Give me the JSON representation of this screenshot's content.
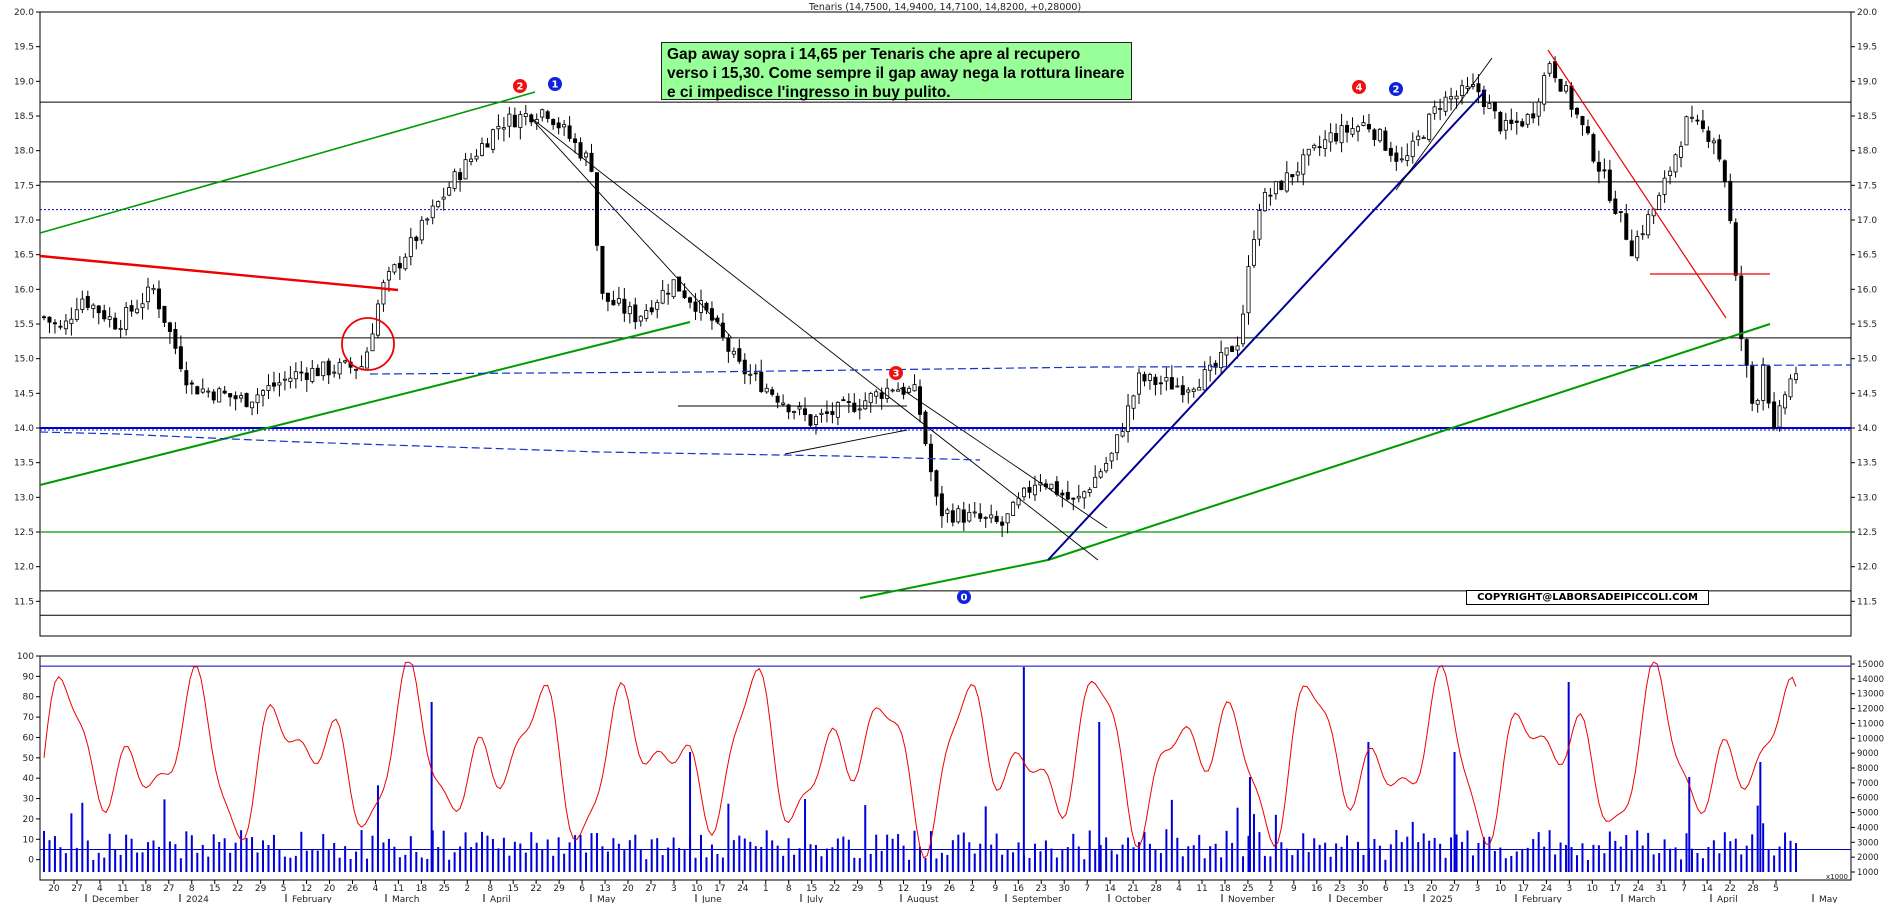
{
  "title": "Tenaris (14,7500, 14,9400, 14,7100, 14,8200, +0,28000)",
  "callout_lines": [
    "Gap away sopra i 14,65 per Tenaris che apre al recupero",
    "verso i 15,30. Come sempre il gap away nega la rottura lineare",
    "e ci impedisce l'ingresso in buy pulito."
  ],
  "copyright": "COPYRIGHT@LABORSADEIPICCOLI.COM",
  "colors": {
    "candle": "#000000",
    "support": "#0000cc",
    "trend_green": "#009900",
    "trend_red": "#ee0000",
    "osc": "#ee0000",
    "volume": "#0000dd"
  },
  "chart_data": [
    {
      "type": "candlestick",
      "title": "Tenaris (14,7500, 14,9400, 14,7100, 14,8200, +0,28000)",
      "ylim": [
        11.0,
        20.0
      ],
      "y_ticks": [
        "11.5",
        "12.0",
        "12.5",
        "13.0",
        "13.5",
        "14.0",
        "14.5",
        "15.0",
        "15.5",
        "16.0",
        "16.5",
        "17.0",
        "17.5",
        "18.0",
        "18.5",
        "19.0",
        "19.5",
        "20.0"
      ],
      "last": {
        "open": 14.75,
        "high": 14.94,
        "low": 14.71,
        "close": 14.82,
        "change": 0.28
      },
      "price_path": [
        {
          "d": 0,
          "p": 15.6
        },
        {
          "d": 10,
          "p": 15.4
        },
        {
          "d": 20,
          "p": 15.9
        },
        {
          "d": 40,
          "p": 15.5
        },
        {
          "d": 60,
          "p": 16.0
        },
        {
          "d": 80,
          "p": 14.6
        },
        {
          "d": 110,
          "p": 14.4
        },
        {
          "d": 140,
          "p": 14.8
        },
        {
          "d": 175,
          "p": 14.9
        },
        {
          "d": 185,
          "p": 16.0
        },
        {
          "d": 200,
          "p": 16.6
        },
        {
          "d": 225,
          "p": 17.6
        },
        {
          "d": 250,
          "p": 18.4
        },
        {
          "d": 275,
          "p": 18.6
        },
        {
          "d": 300,
          "p": 17.8
        },
        {
          "d": 305,
          "p": 15.9
        },
        {
          "d": 325,
          "p": 15.6
        },
        {
          "d": 345,
          "p": 16.1
        },
        {
          "d": 365,
          "p": 15.6
        },
        {
          "d": 380,
          "p": 14.9
        },
        {
          "d": 400,
          "p": 14.5
        },
        {
          "d": 420,
          "p": 14.1
        },
        {
          "d": 450,
          "p": 14.4
        },
        {
          "d": 465,
          "p": 14.6
        },
        {
          "d": 478,
          "p": 14.5
        },
        {
          "d": 490,
          "p": 12.8
        },
        {
          "d": 510,
          "p": 12.7
        },
        {
          "d": 525,
          "p": 12.6
        },
        {
          "d": 545,
          "p": 13.3
        },
        {
          "d": 565,
          "p": 12.9
        },
        {
          "d": 585,
          "p": 13.6
        },
        {
          "d": 600,
          "p": 14.7
        },
        {
          "d": 625,
          "p": 14.6
        },
        {
          "d": 640,
          "p": 14.8
        },
        {
          "d": 655,
          "p": 15.3
        },
        {
          "d": 665,
          "p": 17.2
        },
        {
          "d": 685,
          "p": 17.7
        },
        {
          "d": 705,
          "p": 18.2
        },
        {
          "d": 725,
          "p": 18.4
        },
        {
          "d": 745,
          "p": 17.8
        },
        {
          "d": 765,
          "p": 18.7
        },
        {
          "d": 785,
          "p": 18.9
        },
        {
          "d": 800,
          "p": 18.3
        },
        {
          "d": 815,
          "p": 18.5
        },
        {
          "d": 825,
          "p": 19.3
        },
        {
          "d": 840,
          "p": 18.5
        },
        {
          "d": 855,
          "p": 17.6
        },
        {
          "d": 870,
          "p": 16.6
        },
        {
          "d": 885,
          "p": 17.3
        },
        {
          "d": 900,
          "p": 18.4
        },
        {
          "d": 915,
          "p": 18.2
        },
        {
          "d": 922,
          "p": 17.5
        },
        {
          "d": 930,
          "p": 15.3
        },
        {
          "d": 937,
          "p": 14.2
        },
        {
          "d": 943,
          "p": 15.1
        },
        {
          "d": 947,
          "p": 13.8
        },
        {
          "d": 955,
          "p": 14.6
        },
        {
          "d": 960,
          "p": 14.82
        }
      ],
      "levels": [
        12.5,
        14.0,
        15.3,
        17.55,
        18.7,
        11.65,
        11.3
      ],
      "dotted_levels": [
        17.15,
        14.0
      ],
      "x_labels": [
        "20",
        "27",
        "4",
        "11",
        "18",
        "27",
        "8",
        "15",
        "22",
        "29",
        "5",
        "12",
        "20",
        "26",
        "4",
        "11",
        "18",
        "25",
        "2",
        "8",
        "15",
        "22",
        "29",
        "6",
        "13",
        "20",
        "27",
        "3",
        "10",
        "17",
        "24",
        "1",
        "8",
        "15",
        "22",
        "29",
        "5",
        "12",
        "19",
        "26",
        "2",
        "9",
        "16",
        "23",
        "30",
        "7",
        "14",
        "21",
        "28",
        "4",
        "11",
        "18",
        "25",
        "2",
        "9",
        "16",
        "23",
        "30",
        "6",
        "13",
        "20",
        "27",
        "3",
        "10",
        "17",
        "24",
        "3",
        "10",
        "17",
        "24",
        "31",
        "7",
        "14",
        "22",
        "28",
        "5"
      ],
      "month_labels": [
        "December",
        "2024",
        "February",
        "March",
        "April",
        "May",
        "June",
        "July",
        "August",
        "September",
        "October",
        "November",
        "December",
        "2025",
        "February",
        "March",
        "April",
        "May"
      ]
    },
    {
      "type": "line",
      "name": "oscillator",
      "ylim": [
        -10,
        100
      ],
      "y_ticks": [
        "0",
        "10",
        "20",
        "30",
        "40",
        "50",
        "60",
        "70",
        "80",
        "90",
        "100"
      ]
    },
    {
      "type": "bar",
      "name": "volume",
      "y_ticks": [
        "1000",
        "2000",
        "3000",
        "4000",
        "5000",
        "6000",
        "7000",
        "8000",
        "9000",
        "10000",
        "11000",
        "12000",
        "13000",
        "14000",
        "15000"
      ],
      "scale_label": "x1000"
    }
  ],
  "markers": [
    {
      "label": "2",
      "color": "#ee1111"
    },
    {
      "label": "1",
      "color": "#1122dd"
    },
    {
      "label": "3",
      "color": "#ee1111"
    },
    {
      "label": "0",
      "color": "#1122dd"
    },
    {
      "label": "4",
      "color": "#ee1111"
    },
    {
      "label": "2",
      "color": "#1122dd"
    }
  ]
}
